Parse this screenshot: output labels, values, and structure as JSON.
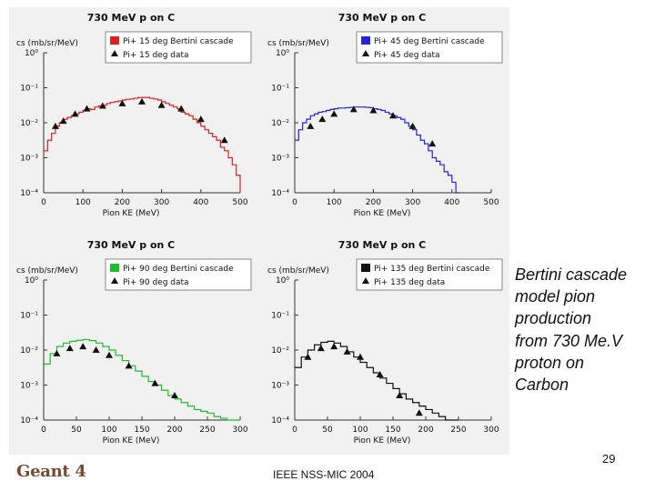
{
  "caption": [
    "Bertini cascade",
    "model pion",
    "production",
    "from 730 Me.V",
    "proton on",
    "Carbon"
  ],
  "footer": {
    "slide_number": "29",
    "conference": "IEEE NSS-MIC 2004",
    "logo": "Geant 4"
  },
  "colors": {
    "red": "#e01f1f",
    "blue": "#2424e0",
    "green": "#1fbf2a",
    "black": "#111111"
  },
  "chart_data": [
    {
      "type": "line",
      "title": "730 MeV p on C",
      "ylabel": "cs (mb/sr/MeV)",
      "xlabel": "Pion KE (MeV)",
      "xlim": [
        0,
        500
      ],
      "x_ticks": [
        "0",
        "100",
        "200",
        "300",
        "400",
        "500"
      ],
      "y_ticks": [
        "10⁰",
        "10⁻¹",
        "10⁻²",
        "10⁻³",
        "10⁻⁴"
      ],
      "log_ylim": [
        -4,
        0
      ],
      "color": "#e01f1f",
      "legend": [
        "Pi+ 15 deg Bertini cascade",
        "Pi+ 15 deg data"
      ],
      "series": [
        {
          "name": "Pi+ 15 deg Bertini cascade",
          "style": "step",
          "x": [
            0,
            10,
            20,
            30,
            40,
            50,
            60,
            70,
            80,
            90,
            100,
            110,
            120,
            130,
            140,
            150,
            160,
            170,
            180,
            190,
            200,
            210,
            220,
            230,
            240,
            250,
            260,
            270,
            280,
            290,
            300,
            310,
            320,
            330,
            340,
            350,
            360,
            370,
            380,
            390,
            400,
            410,
            420,
            430,
            440,
            450,
            460,
            470,
            480,
            490,
            500
          ],
          "log_y": [
            -2.8,
            -2.5,
            -2.3,
            -2.1,
            -2.0,
            -1.9,
            -1.85,
            -1.8,
            -1.75,
            -1.7,
            -1.65,
            -1.6,
            -1.62,
            -1.55,
            -1.52,
            -1.5,
            -1.45,
            -1.42,
            -1.4,
            -1.38,
            -1.35,
            -1.33,
            -1.32,
            -1.3,
            -1.28,
            -1.28,
            -1.28,
            -1.3,
            -1.32,
            -1.35,
            -1.4,
            -1.45,
            -1.5,
            -1.55,
            -1.6,
            -1.7,
            -1.75,
            -1.8,
            -1.9,
            -2.0,
            -2.1,
            -2.2,
            -2.3,
            -2.4,
            -2.5,
            -2.7,
            -2.8,
            -3.0,
            -3.2,
            -3.5,
            -4.0
          ]
        },
        {
          "name": "Pi+ 15 deg data",
          "style": "marker",
          "x": [
            30,
            50,
            80,
            110,
            150,
            200,
            250,
            300,
            350,
            400,
            460
          ],
          "log_y": [
            -2.1,
            -1.95,
            -1.75,
            -1.6,
            -1.52,
            -1.45,
            -1.4,
            -1.5,
            -1.6,
            -1.9,
            -2.5
          ]
        }
      ]
    },
    {
      "type": "line",
      "title": "730 MeV p on C",
      "ylabel": "cs (mb/sr/MeV)",
      "xlabel": "Pion KE (MeV)",
      "xlim": [
        0,
        500
      ],
      "x_ticks": [
        "0",
        "100",
        "200",
        "300",
        "400",
        "500"
      ],
      "y_ticks": [
        "10⁰",
        "10⁻¹",
        "10⁻²",
        "10⁻³",
        "10⁻⁴"
      ],
      "log_ylim": [
        -4,
        0
      ],
      "color": "#2424e0",
      "legend": [
        "Pi+ 45 deg Bertini cascade",
        "Pi+ 45 deg data"
      ],
      "series": [
        {
          "name": "Pi+ 45 deg Bertini cascade",
          "style": "step",
          "x": [
            0,
            10,
            20,
            30,
            40,
            50,
            60,
            70,
            80,
            90,
            100,
            110,
            120,
            130,
            140,
            150,
            160,
            170,
            180,
            190,
            200,
            210,
            220,
            230,
            240,
            250,
            260,
            270,
            280,
            290,
            300,
            310,
            320,
            330,
            340,
            350,
            360,
            370,
            380,
            390,
            400,
            410
          ],
          "log_y": [
            -2.5,
            -2.2,
            -2.0,
            -1.9,
            -1.8,
            -1.75,
            -1.7,
            -1.68,
            -1.65,
            -1.62,
            -1.6,
            -1.58,
            -1.58,
            -1.57,
            -1.56,
            -1.55,
            -1.55,
            -1.55,
            -1.56,
            -1.57,
            -1.6,
            -1.62,
            -1.65,
            -1.7,
            -1.75,
            -1.8,
            -1.85,
            -1.9,
            -2.0,
            -2.1,
            -2.2,
            -2.35,
            -2.5,
            -2.6,
            -2.8,
            -3.0,
            -3.1,
            -3.2,
            -3.4,
            -3.5,
            -3.7,
            -4.0
          ]
        },
        {
          "name": "Pi+ 45 deg data",
          "style": "marker",
          "x": [
            40,
            70,
            100,
            150,
            200,
            250,
            300,
            350
          ],
          "log_y": [
            -2.1,
            -1.9,
            -1.75,
            -1.62,
            -1.65,
            -1.8,
            -2.1,
            -2.6
          ]
        }
      ]
    },
    {
      "type": "line",
      "title": "730 MeV p on C",
      "ylabel": "cs (mb/sr/MeV)",
      "xlabel": "Pion KE (MeV)",
      "xlim": [
        0,
        300
      ],
      "x_ticks": [
        "0",
        "50",
        "100",
        "150",
        "200",
        "250",
        "300"
      ],
      "y_ticks": [
        "10⁰",
        "10⁻¹",
        "10⁻²",
        "10⁻³",
        "10⁻⁴"
      ],
      "log_ylim": [
        -4,
        0
      ],
      "color": "#1fbf2a",
      "legend": [
        "Pi+ 90 deg Bertini cascade",
        "Pi+ 90 deg data"
      ],
      "series": [
        {
          "name": "Pi+ 90 deg Bertini cascade",
          "style": "step",
          "x": [
            0,
            10,
            20,
            30,
            40,
            50,
            60,
            70,
            80,
            90,
            100,
            110,
            120,
            130,
            140,
            150,
            160,
            170,
            180,
            190,
            200,
            210,
            220,
            230,
            240,
            250,
            260,
            270,
            280,
            290,
            300
          ],
          "log_y": [
            -2.4,
            -2.1,
            -1.9,
            -1.8,
            -1.75,
            -1.72,
            -1.7,
            -1.73,
            -1.8,
            -1.9,
            -2.0,
            -2.15,
            -2.3,
            -2.45,
            -2.6,
            -2.75,
            -2.9,
            -3.0,
            -3.15,
            -3.3,
            -3.4,
            -3.5,
            -3.6,
            -3.7,
            -3.75,
            -3.8,
            -3.9,
            -3.95,
            -4.0,
            -4.0,
            -4.0
          ]
        },
        {
          "name": "Pi+ 90 deg data",
          "style": "marker",
          "x": [
            20,
            40,
            60,
            80,
            100,
            130,
            170,
            200
          ],
          "log_y": [
            -2.1,
            -1.95,
            -1.9,
            -2.0,
            -2.15,
            -2.45,
            -2.95,
            -3.3
          ]
        }
      ]
    },
    {
      "type": "line",
      "title": "730 MeV p on C",
      "ylabel": "cs (mb/sr/MeV)",
      "xlabel": "Pion KE (MeV)",
      "xlim": [
        0,
        300
      ],
      "x_ticks": [
        "0",
        "50",
        "100",
        "150",
        "200",
        "250",
        "300"
      ],
      "y_ticks": [
        "10⁰",
        "10⁻¹",
        "10⁻²",
        "10⁻³",
        "10⁻⁴"
      ],
      "log_ylim": [
        -4,
        0
      ],
      "color": "#111111",
      "legend": [
        "Pi+ 135 deg Bertini cascade",
        "Pi+ 135 deg data"
      ],
      "series": [
        {
          "name": "Pi+ 135 deg Bertini cascade",
          "style": "step",
          "x": [
            0,
            10,
            20,
            30,
            40,
            50,
            60,
            70,
            80,
            90,
            100,
            110,
            120,
            130,
            140,
            150,
            160,
            170,
            180,
            190,
            200,
            210,
            220,
            230,
            240
          ],
          "log_y": [
            -2.5,
            -2.2,
            -2.0,
            -1.85,
            -1.78,
            -1.75,
            -1.8,
            -1.9,
            -2.05,
            -2.2,
            -2.35,
            -2.5,
            -2.65,
            -2.8,
            -2.95,
            -3.1,
            -3.25,
            -3.4,
            -3.5,
            -3.6,
            -3.7,
            -3.8,
            -3.9,
            -4.0,
            -4.0
          ]
        },
        {
          "name": "Pi+ 135 deg data",
          "style": "marker",
          "x": [
            20,
            40,
            60,
            80,
            100,
            130,
            160,
            190
          ],
          "log_y": [
            -2.2,
            -1.95,
            -1.9,
            -2.05,
            -2.2,
            -2.7,
            -3.3,
            -3.8
          ]
        }
      ]
    }
  ]
}
